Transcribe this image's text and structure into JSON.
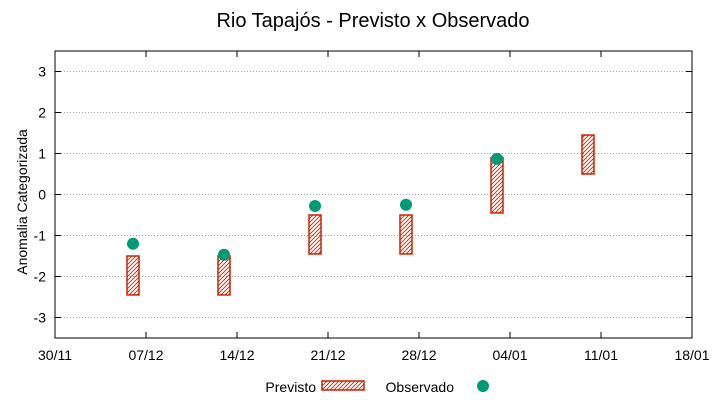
{
  "chart_data": {
    "type": "range-bar-with-points",
    "title": "Rio Tapajós - Previsto x Observado",
    "ylabel": "Anomalia Categorizada",
    "xlabel": "",
    "ylim": [
      -3.5,
      3.5
    ],
    "yticks": [
      -3,
      -2,
      -1,
      0,
      1,
      2,
      3
    ],
    "ytick_labels": [
      "-3",
      "-2",
      "-1",
      "0",
      "1",
      "2",
      "3"
    ],
    "x_ticks": [
      {
        "label": "30/11",
        "day": 0
      },
      {
        "label": "07/12",
        "day": 7
      },
      {
        "label": "14/12",
        "day": 14
      },
      {
        "label": "21/12",
        "day": 21
      },
      {
        "label": "28/12",
        "day": 28
      },
      {
        "label": "04/01",
        "day": 35
      },
      {
        "label": "11/01",
        "day": 42
      },
      {
        "label": "18/01",
        "day": 49
      }
    ],
    "xlim_days": [
      0,
      49
    ],
    "grid": "y-dotted",
    "series": [
      {
        "name": "Previsto",
        "kind": "range",
        "color": "#cc2200",
        "points": [
          {
            "day": 6,
            "low": -2.45,
            "high": -1.5
          },
          {
            "day": 13,
            "low": -2.45,
            "high": -1.5
          },
          {
            "day": 20,
            "low": -1.45,
            "high": -0.5
          },
          {
            "day": 27,
            "low": -1.45,
            "high": -0.5
          },
          {
            "day": 34,
            "low": -0.45,
            "high": 0.9
          },
          {
            "day": 41,
            "low": 0.5,
            "high": 1.45
          }
        ]
      },
      {
        "name": "Observado",
        "kind": "point",
        "color": "#009b74",
        "points": [
          {
            "day": 6,
            "y": -1.2
          },
          {
            "day": 13,
            "y": -1.47
          },
          {
            "day": 20,
            "y": -0.28
          },
          {
            "day": 27,
            "y": -0.25
          },
          {
            "day": 34,
            "y": 0.87
          }
        ]
      }
    ],
    "legend": {
      "position": "bottom-center",
      "entries": [
        "Previsto",
        "Observado"
      ]
    }
  }
}
